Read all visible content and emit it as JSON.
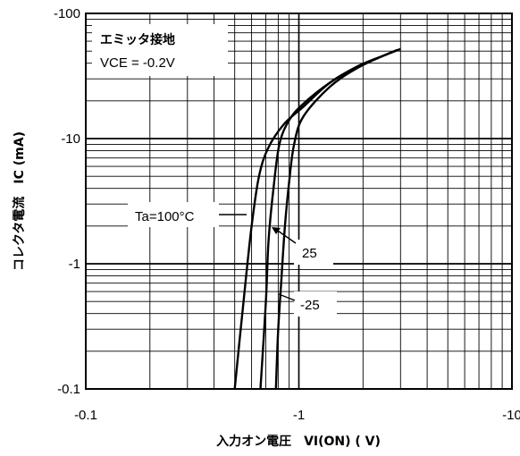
{
  "chart_data": {
    "type": "line",
    "x_scale": "log",
    "y_scale": "log",
    "xlabel": "入力オン電圧　VI(ON) ( V)",
    "ylabel": "コレクタ電流　IC (mA)",
    "xlim": [
      -0.1,
      -10
    ],
    "ylim": [
      -0.1,
      -100
    ],
    "x_ticks": [
      "-0.1",
      "-1",
      "-10"
    ],
    "y_ticks": [
      "-100",
      "-10",
      "-1",
      "-0.1"
    ],
    "grid": true,
    "conditions": [
      "エミッタ接地",
      "VCE = -0.2V"
    ],
    "series": [
      {
        "name": "Ta=100°C",
        "x": [
          -0.5,
          -0.55,
          -0.6,
          -0.65,
          -0.72,
          -0.85,
          -1.05,
          -1.4,
          -1.9,
          -2.5,
          -2.9
        ],
        "y": [
          -0.1,
          -0.5,
          -2,
          -5,
          -8.5,
          -13,
          -18,
          -28,
          -38,
          -46,
          -51
        ]
      },
      {
        "name": "25",
        "x": [
          -0.66,
          -0.7,
          -0.72,
          -0.76,
          -0.81,
          -0.9,
          -1.05,
          -1.4,
          -1.9,
          -2.5,
          -2.9
        ],
        "y": [
          -0.1,
          -0.5,
          -1.5,
          -4,
          -9,
          -14,
          -19,
          -28,
          -38,
          -46,
          -51
        ]
      },
      {
        "name": "-25",
        "x": [
          -0.78,
          -0.8,
          -0.83,
          -0.86,
          -0.9,
          -0.95,
          -1.05,
          -1.4,
          -1.9,
          -2.5,
          -3.0
        ],
        "y": [
          -0.1,
          -0.3,
          -0.8,
          -2,
          -4.5,
          -9,
          -15,
          -26,
          -37,
          -46,
          -52
        ]
      }
    ]
  }
}
